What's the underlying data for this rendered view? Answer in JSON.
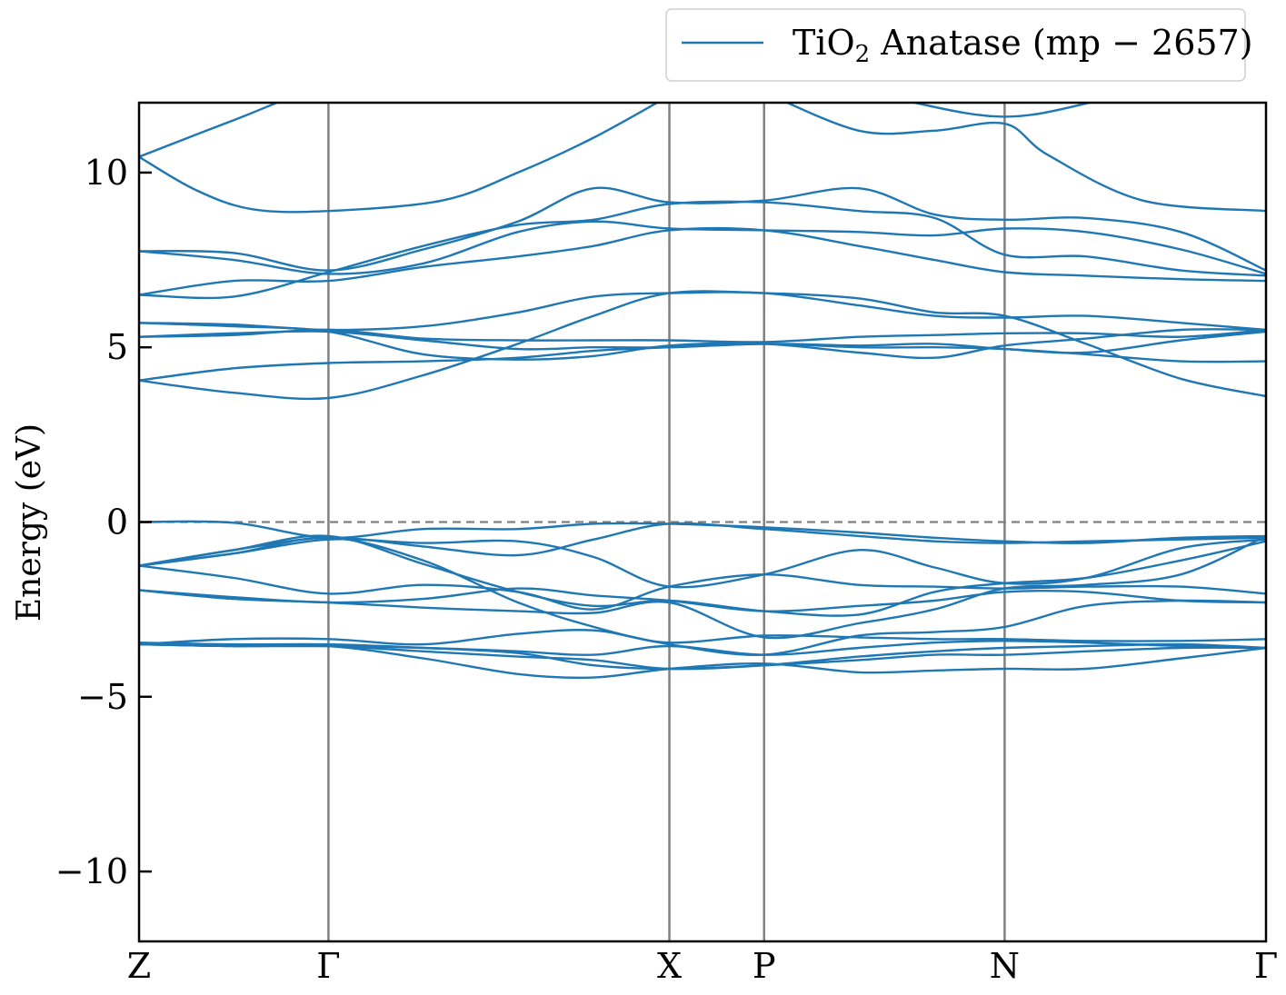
{
  "chart_data": {
    "type": "line",
    "ylabel": "Energy (eV)",
    "ylim": [
      -12,
      12
    ],
    "yticks": [
      {
        "value": 10,
        "label": "10"
      },
      {
        "value": 5,
        "label": "5"
      },
      {
        "value": 0,
        "label": "0"
      },
      {
        "value": -5,
        "label": "−5"
      },
      {
        "value": -10,
        "label": "−10"
      }
    ],
    "xlim": [
      0,
      5.95
    ],
    "kpoints": [
      {
        "label": "Z",
        "x": 0
      },
      {
        "label": "Γ",
        "x": 1.0
      },
      {
        "label": "X",
        "x": 2.8
      },
      {
        "label": "P",
        "x": 3.3
      },
      {
        "label": "N",
        "x": 4.57
      },
      {
        "label": "Γ",
        "x": 5.95
      }
    ],
    "fermi_level": 0,
    "grid": false,
    "legend": {
      "placement": "top-right",
      "entries": [
        {
          "text": "TiO",
          "subscript": "2",
          "suffix": " Anatase (mp − 2657)"
        }
      ]
    },
    "colors": {
      "band": "#1f77b4",
      "kpoint_line": "#808080",
      "fermi": "#808080"
    },
    "series": [
      {
        "x": [
          0,
          0.5,
          1.0,
          1.6,
          2.2,
          2.8,
          3.3,
          3.9,
          4.57,
          5.2,
          5.95
        ],
        "values": [
          10.45,
          11.5,
          12.5,
          13.0,
          13.2,
          13.0,
          12.6,
          12.2,
          11.6,
          12.2,
          12.8
        ]
      },
      {
        "x": [
          0,
          0.3,
          0.6,
          1.0,
          1.6,
          2.0,
          2.4,
          2.8
        ],
        "values": [
          10.45,
          9.5,
          8.95,
          8.9,
          9.2,
          10.0,
          11.0,
          12.2
        ]
      },
      {
        "x": [
          3.3,
          3.8,
          4.2,
          4.57,
          4.8,
          5.3,
          5.95
        ],
        "values": [
          12.3,
          11.2,
          11.2,
          11.4,
          10.5,
          9.2,
          8.9
        ]
      },
      {
        "x": [
          0,
          0.5,
          1.0,
          1.5,
          2.0,
          2.4,
          2.8,
          3.3,
          3.8,
          4.2,
          4.57,
          5.0,
          5.5,
          5.95
        ],
        "values": [
          7.75,
          7.7,
          7.2,
          7.8,
          8.6,
          9.55,
          9.15,
          9.2,
          9.55,
          8.8,
          8.65,
          8.7,
          8.3,
          7.2
        ]
      },
      {
        "x": [
          0,
          0.5,
          1.0,
          1.5,
          2.0,
          2.4,
          2.8,
          3.3,
          3.8,
          4.2,
          4.57,
          5.0,
          5.5,
          5.95
        ],
        "values": [
          7.75,
          7.5,
          7.1,
          7.4,
          8.3,
          8.6,
          8.4,
          8.35,
          8.3,
          8.2,
          8.4,
          8.3,
          7.8,
          7.1
        ]
      },
      {
        "x": [
          0,
          0.5,
          1.0,
          1.5,
          2.0,
          2.4,
          2.8,
          3.3,
          3.8,
          4.2,
          4.57,
          5.0,
          5.5,
          5.95
        ],
        "values": [
          6.5,
          6.45,
          7.15,
          7.9,
          8.5,
          8.65,
          9.1,
          9.15,
          8.9,
          8.7,
          7.65,
          7.6,
          7.2,
          7.05
        ]
      },
      {
        "x": [
          0,
          0.5,
          1.0,
          1.5,
          2.0,
          2.4,
          2.8,
          3.3,
          3.8,
          4.2,
          4.57,
          5.0,
          5.5,
          5.95
        ],
        "values": [
          6.5,
          6.9,
          6.9,
          7.3,
          7.6,
          7.9,
          8.35,
          8.35,
          7.9,
          7.5,
          7.15,
          7.05,
          6.95,
          6.9
        ]
      },
      {
        "x": [
          0,
          0.5,
          1.0,
          1.5,
          2.0,
          2.4,
          2.8,
          3.3,
          3.8,
          4.2,
          4.57,
          5.0,
          5.5,
          5.95
        ],
        "values": [
          5.7,
          5.65,
          5.5,
          5.6,
          6.0,
          6.45,
          6.55,
          6.55,
          6.2,
          5.9,
          5.85,
          5.9,
          5.7,
          5.5
        ]
      },
      {
        "x": [
          0,
          0.5,
          1.0,
          1.5,
          2.0,
          2.4,
          2.8,
          3.3,
          3.8,
          4.2,
          4.57,
          5.0,
          5.5,
          5.95
        ],
        "values": [
          5.3,
          5.35,
          5.5,
          5.25,
          5.2,
          5.2,
          5.2,
          5.15,
          5.3,
          5.35,
          5.4,
          5.4,
          5.3,
          5.5
        ]
      },
      {
        "x": [
          0,
          0.5,
          1.0,
          1.5,
          2.0,
          2.4,
          2.8,
          3.3,
          3.8,
          4.2,
          4.57,
          5.0,
          5.5,
          5.95
        ],
        "values": [
          5.3,
          5.4,
          5.45,
          5.2,
          4.95,
          5.0,
          5.0,
          5.1,
          5.05,
          5.1,
          4.95,
          4.85,
          5.2,
          5.45
        ]
      },
      {
        "x": [
          0,
          0.5,
          1.0,
          1.5,
          2.0,
          2.4,
          2.8,
          3.3,
          3.8,
          4.2,
          4.57,
          5.0,
          5.5,
          5.95
        ],
        "values": [
          5.7,
          5.6,
          5.45,
          4.8,
          4.65,
          4.75,
          5.05,
          5.1,
          4.85,
          4.7,
          5.05,
          5.25,
          5.5,
          5.5
        ]
      },
      {
        "x": [
          0,
          0.5,
          1.0,
          1.5,
          2.0,
          2.4,
          2.8,
          3.3,
          3.8,
          4.2,
          4.57,
          5.0,
          5.5,
          5.95
        ],
        "values": [
          4.05,
          4.4,
          4.55,
          4.6,
          4.7,
          4.9,
          5.0,
          5.1,
          5.0,
          5.0,
          4.95,
          4.8,
          4.6,
          4.6
        ]
      },
      {
        "x": [
          0,
          0.5,
          1.0,
          1.5,
          2.0,
          2.4,
          2.8,
          3.3,
          3.8,
          4.2,
          4.57,
          5.0,
          5.5,
          5.95
        ],
        "values": [
          4.05,
          3.7,
          3.55,
          4.2,
          5.1,
          5.9,
          6.55,
          6.55,
          6.4,
          6.0,
          5.9,
          5.1,
          4.1,
          3.6
        ]
      },
      {
        "x": [
          0,
          0.5,
          1.0,
          1.5,
          2.0,
          2.4,
          2.8,
          3.3,
          3.8,
          4.2,
          4.57,
          5.0,
          5.5,
          5.95
        ],
        "values": [
          0.0,
          -0.02,
          -0.45,
          -0.2,
          -0.2,
          -0.05,
          -0.05,
          -0.15,
          -0.3,
          -0.45,
          -0.55,
          -0.6,
          -0.45,
          -0.4
        ]
      },
      {
        "x": [
          0,
          0.5,
          1.0,
          1.5,
          2.0,
          2.4,
          2.8,
          3.3,
          3.8,
          4.2,
          4.57,
          5.0,
          5.5,
          5.95
        ],
        "values": [
          -1.25,
          -0.8,
          -0.45,
          -0.7,
          -0.95,
          -0.5,
          -0.05,
          -0.2,
          -0.4,
          -0.55,
          -0.6,
          -0.55,
          -0.5,
          -0.45
        ]
      },
      {
        "x": [
          0,
          0.5,
          1.0,
          1.5,
          2.0,
          2.4,
          2.8,
          3.3,
          3.8,
          4.2,
          4.57,
          5.0,
          5.5,
          5.95
        ],
        "values": [
          -1.25,
          -0.9,
          -0.5,
          -0.6,
          -0.55,
          -1.0,
          -1.85,
          -1.5,
          -0.8,
          -1.3,
          -1.75,
          -1.6,
          -0.75,
          -0.5
        ]
      },
      {
        "x": [
          0,
          0.5,
          1.0,
          1.5,
          2.0,
          2.4,
          2.8,
          3.3,
          3.8,
          4.2,
          4.57,
          5.0,
          5.5,
          5.95
        ],
        "values": [
          -1.25,
          -1.6,
          -2.05,
          -1.8,
          -2.0,
          -2.5,
          -1.85,
          -1.5,
          -1.8,
          -1.85,
          -1.9,
          -1.85,
          -1.85,
          -2.05
        ]
      },
      {
        "x": [
          0,
          0.5,
          1.0,
          1.5,
          2.0,
          2.4,
          2.8,
          3.3,
          3.8,
          4.2,
          4.57,
          5.0,
          5.5,
          5.95
        ],
        "values": [
          -1.25,
          -0.8,
          -0.4,
          -1.2,
          -2.0,
          -2.4,
          -2.25,
          -2.55,
          -2.65,
          -2.0,
          -1.75,
          -1.6,
          -1.1,
          -0.55
        ]
      },
      {
        "x": [
          0,
          0.5,
          1.0,
          1.5,
          2.0,
          2.4,
          2.8,
          3.3,
          3.8,
          4.2,
          4.57,
          5.0,
          5.5,
          5.95
        ],
        "values": [
          -1.95,
          -2.15,
          -2.3,
          -2.2,
          -1.9,
          -2.1,
          -2.25,
          -2.55,
          -2.4,
          -2.25,
          -2.0,
          -2.0,
          -2.25,
          -2.3
        ]
      },
      {
        "x": [
          0,
          0.5,
          1.0,
          1.5,
          2.0,
          2.4,
          2.8,
          3.3,
          3.8,
          4.2,
          4.57,
          5.0,
          5.5,
          5.95
        ],
        "values": [
          -1.95,
          -2.2,
          -2.3,
          -2.45,
          -2.55,
          -2.6,
          -2.3,
          -3.3,
          -2.9,
          -2.5,
          -1.9,
          -1.8,
          -1.5,
          -0.4
        ]
      },
      {
        "x": [
          0,
          0.5,
          1.0,
          1.5,
          2.0,
          2.4,
          2.8,
          3.3,
          3.8,
          4.2,
          4.57,
          5.0,
          5.5,
          5.95
        ],
        "values": [
          -1.25,
          -0.9,
          -0.45,
          -1.1,
          -2.3,
          -3.0,
          -3.5,
          -3.8,
          -3.25,
          -3.15,
          -3.0,
          -2.4,
          -2.25,
          -2.3
        ]
      },
      {
        "x": [
          0,
          0.5,
          1.0,
          1.5,
          2.0,
          2.4,
          2.8,
          3.3,
          3.8,
          4.2,
          4.57,
          5.0,
          5.5,
          5.95
        ],
        "values": [
          -3.5,
          -3.35,
          -3.35,
          -3.5,
          -3.2,
          -3.1,
          -3.45,
          -3.25,
          -3.3,
          -3.35,
          -3.35,
          -3.4,
          -3.4,
          -3.35
        ]
      },
      {
        "x": [
          0,
          0.5,
          1.0,
          1.5,
          2.0,
          2.4,
          2.8,
          3.3,
          3.8,
          4.2,
          4.57,
          5.0,
          5.5,
          5.95
        ],
        "values": [
          -3.5,
          -3.55,
          -3.55,
          -3.6,
          -3.7,
          -3.8,
          -3.55,
          -3.8,
          -3.6,
          -3.45,
          -3.4,
          -3.45,
          -3.55,
          -3.6
        ]
      },
      {
        "x": [
          0,
          0.5,
          1.0,
          1.5,
          2.0,
          2.4,
          2.8,
          3.3,
          3.8,
          4.2,
          4.57,
          5.0,
          5.5,
          5.95
        ],
        "values": [
          -3.45,
          -3.5,
          -3.5,
          -3.6,
          -3.75,
          -4.1,
          -4.2,
          -4.1,
          -3.95,
          -3.8,
          -3.8,
          -3.7,
          -3.6,
          -3.6
        ]
      },
      {
        "x": [
          0,
          0.5,
          1.0,
          1.5,
          2.0,
          2.4,
          2.8,
          3.3,
          3.8,
          4.2,
          4.57,
          5.0,
          5.5,
          5.95
        ],
        "values": [
          -3.5,
          -3.55,
          -3.55,
          -3.9,
          -4.35,
          -4.45,
          -4.2,
          -4.05,
          -4.3,
          -4.25,
          -4.2,
          -4.2,
          -3.9,
          -3.6
        ]
      },
      {
        "x": [
          0,
          0.5,
          1.0,
          1.5,
          2.0,
          2.4,
          2.8,
          3.3,
          3.8,
          4.2,
          4.57,
          5.0,
          5.5,
          5.95
        ],
        "values": [
          -3.5,
          -3.55,
          -3.55,
          -3.7,
          -3.85,
          -3.95,
          -4.2,
          -4.1,
          -3.85,
          -3.7,
          -3.6,
          -3.55,
          -3.5,
          -3.6
        ]
      }
    ]
  }
}
